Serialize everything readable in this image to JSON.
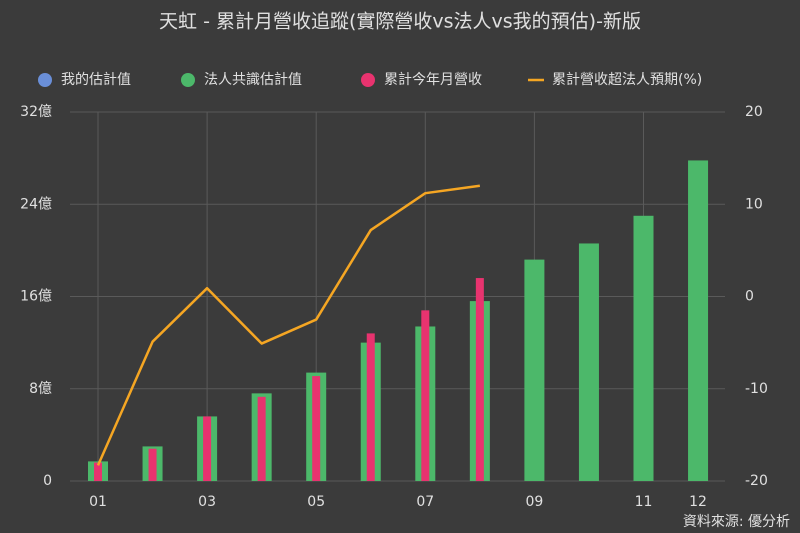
{
  "chart_data": {
    "type": "bar-line",
    "title": "天虹 - 累計月營收追蹤(實際營收vs法人vs我的預估)-新版",
    "source": "資料來源: 優分析",
    "categories": [
      "01",
      null,
      "03",
      null,
      "05",
      null,
      "07",
      null,
      "09",
      null,
      "11",
      "12"
    ],
    "series": [
      {
        "name": "我的估計值",
        "color": "#6a8fd8",
        "kind": "bar",
        "values": [
          null,
          null,
          null,
          null,
          null,
          null,
          null,
          null,
          null,
          null,
          null,
          null
        ]
      },
      {
        "name": "法人共識估計值",
        "color": "#4cb86a",
        "kind": "bar",
        "values": [
          1.7,
          3.0,
          5.6,
          7.6,
          9.4,
          12.0,
          13.4,
          15.6,
          19.2,
          20.6,
          23.0,
          27.8
        ]
      },
      {
        "name": "累計今年月營收",
        "color": "#e8336f",
        "kind": "bar",
        "values": [
          1.6,
          2.8,
          5.6,
          7.3,
          9.1,
          12.8,
          14.8,
          17.6,
          null,
          null,
          null,
          null
        ]
      },
      {
        "name": "累計營收超法人預期(%)",
        "color": "#f5a623",
        "kind": "line",
        "axis": "y2",
        "values": [
          -18.3,
          -4.9,
          0.9,
          -5.1,
          -2.5,
          7.2,
          11.2,
          12.0,
          null,
          null,
          null,
          null
        ]
      }
    ],
    "ylim": [
      0,
      32
    ],
    "yticks": [
      0,
      {
        "value": 8,
        "label": "8億"
      },
      {
        "value": 16,
        "label": "16億"
      },
      {
        "value": 24,
        "label": "24億"
      },
      {
        "value": 32,
        "label": "32億"
      }
    ],
    "y2lim": [
      -20,
      20
    ],
    "y2ticks": [
      -20,
      -10,
      0,
      10,
      20
    ],
    "grid": true
  }
}
